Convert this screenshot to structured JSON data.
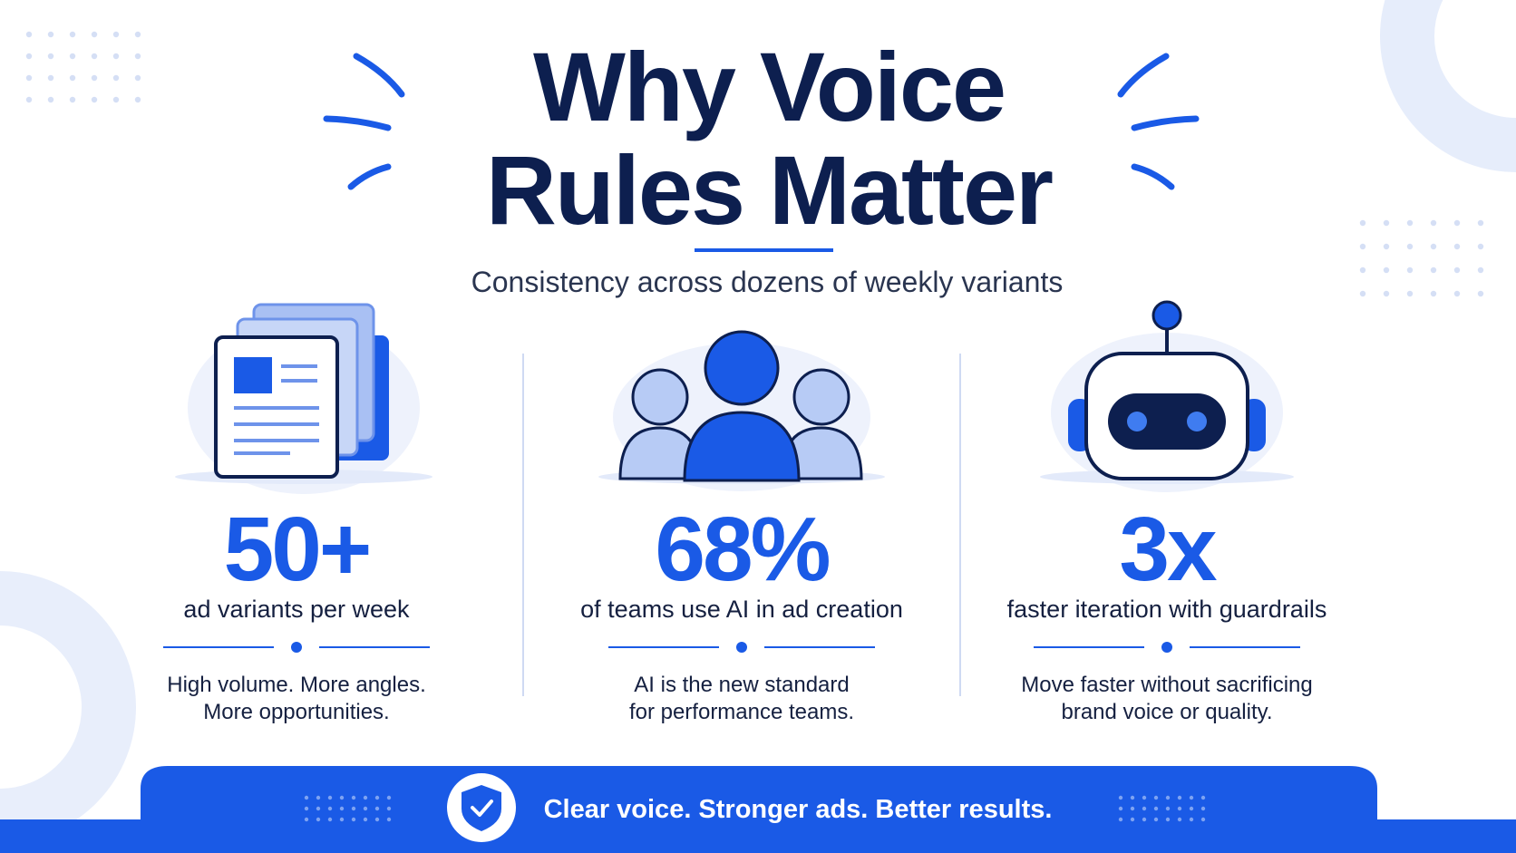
{
  "header": {
    "title": [
      "Why Voice",
      "Rules Matter"
    ],
    "subtitle": "Consistency across dozens of weekly variants"
  },
  "stats": [
    {
      "value": "50+",
      "label": "ad variants per week",
      "description": [
        "High volume. More angles.",
        "More opportunities."
      ]
    },
    {
      "value": "68%",
      "label": "of teams use AI in ad creation",
      "description": [
        "AI is the new standard",
        "for performance teams."
      ]
    },
    {
      "value": "3x",
      "label": "faster iteration with guardrails",
      "description": [
        "Move faster without sacrificing",
        "brand voice or quality."
      ]
    }
  ],
  "footer": {
    "text": "Clear voice. Stronger ads. Better results."
  }
}
